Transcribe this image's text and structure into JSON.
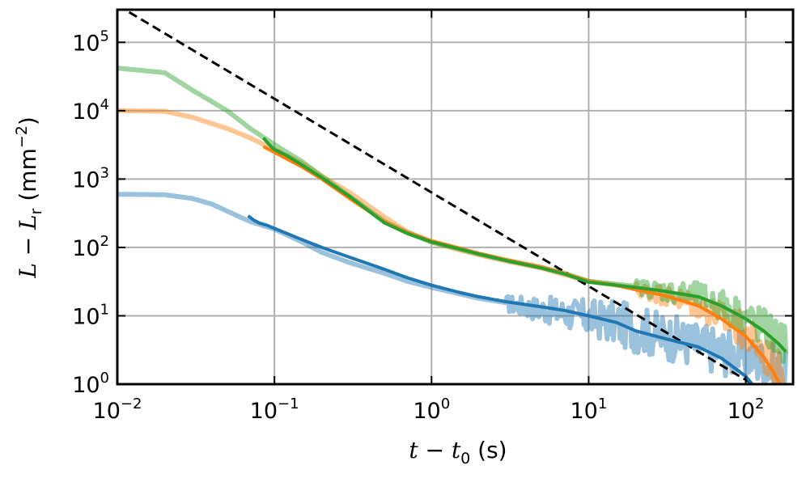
{
  "chart_data": {
    "type": "line",
    "title": "",
    "xscale": "log",
    "yscale": "log",
    "xlim": [
      0.01,
      200
    ],
    "ylim": [
      1,
      300000
    ],
    "grid": true,
    "xlabel": {
      "t": "t",
      "minus": " − ",
      "t0": "t",
      "sub": "0",
      "unit": " (s)"
    },
    "ylabel": {
      "L": "L",
      "minus": " − ",
      "Lr": "L",
      "sub": "r",
      "unit_open": " (mm",
      "sup": "−2",
      "unit_close": ")"
    },
    "xticks": [
      {
        "value": 0.01,
        "base": "10",
        "exp": "−2"
      },
      {
        "value": 0.1,
        "base": "10",
        "exp": "−1"
      },
      {
        "value": 1,
        "base": "10",
        "exp": "0"
      },
      {
        "value": 10,
        "base": "10",
        "exp": "1"
      },
      {
        "value": 100,
        "base": "10",
        "exp": "2"
      }
    ],
    "yticks": [
      {
        "value": 1,
        "base": "10",
        "exp": "0"
      },
      {
        "value": 10,
        "base": "10",
        "exp": "1"
      },
      {
        "value": 100,
        "base": "10",
        "exp": "2"
      },
      {
        "value": 1000,
        "base": "10",
        "exp": "3"
      },
      {
        "value": 10000,
        "base": "10",
        "exp": "4"
      },
      {
        "value": 100000,
        "base": "10",
        "exp": "5"
      }
    ],
    "reference_line": {
      "style": "dashed",
      "color": "#000000",
      "x": [
        0.01,
        120
      ],
      "y": [
        350000,
        0.9
      ]
    },
    "series": [
      {
        "color": "#1f77b4",
        "raw_smooth": [
          [
            0.01,
            600
          ],
          [
            0.02,
            590
          ],
          [
            0.03,
            520
          ],
          [
            0.04,
            430
          ],
          [
            0.05,
            340
          ],
          [
            0.06,
            280
          ],
          [
            0.07,
            240
          ],
          [
            0.1,
            185
          ],
          [
            0.15,
            120
          ],
          [
            0.2,
            85
          ],
          [
            0.3,
            60
          ],
          [
            0.5,
            42
          ],
          [
            0.7,
            32
          ],
          [
            1,
            26
          ],
          [
            1.5,
            21
          ],
          [
            2,
            18
          ],
          [
            3,
            15.5
          ],
          [
            5,
            13
          ],
          [
            7,
            11.5
          ],
          [
            10,
            10
          ],
          [
            15,
            8.5
          ],
          [
            20,
            7
          ],
          [
            30,
            5.5
          ],
          [
            50,
            4
          ],
          [
            70,
            3.3
          ],
          [
            100,
            2.8
          ],
          [
            130,
            2.2
          ],
          [
            160,
            1.8
          ],
          [
            180,
            1.5
          ]
        ],
        "raw_noise": {
          "from_x": 3,
          "amplitude": 0.35
        },
        "fit": [
          [
            0.068,
            290
          ],
          [
            0.074,
            250
          ],
          [
            0.08,
            228
          ],
          [
            0.09,
            210
          ],
          [
            0.1,
            190
          ],
          [
            0.12,
            160
          ],
          [
            0.15,
            130
          ],
          [
            0.2,
            100
          ],
          [
            0.3,
            72
          ],
          [
            0.5,
            48
          ],
          [
            0.7,
            36
          ],
          [
            1,
            28
          ],
          [
            1.5,
            22
          ],
          [
            2,
            19
          ],
          [
            3,
            16
          ],
          [
            5,
            13.5
          ],
          [
            7,
            12
          ],
          [
            10,
            10
          ],
          [
            15,
            8
          ],
          [
            20,
            6
          ],
          [
            30,
            4.7
          ],
          [
            50,
            3.5
          ],
          [
            70,
            2.4
          ],
          [
            100,
            1.3
          ],
          [
            110,
            1
          ]
        ]
      },
      {
        "color": "#ff7f0e",
        "raw_smooth": [
          [
            0.01,
            10000
          ],
          [
            0.02,
            9800
          ],
          [
            0.03,
            8000
          ],
          [
            0.05,
            5500
          ],
          [
            0.07,
            4000
          ],
          [
            0.1,
            2700
          ],
          [
            0.15,
            1700
          ],
          [
            0.2,
            1100
          ],
          [
            0.3,
            640
          ],
          [
            0.5,
            280
          ],
          [
            0.7,
            170
          ],
          [
            1,
            120
          ],
          [
            1.5,
            92
          ],
          [
            2,
            78
          ],
          [
            3,
            63
          ],
          [
            5,
            50
          ],
          [
            7,
            40
          ],
          [
            10,
            32
          ],
          [
            15,
            28
          ],
          [
            20,
            25
          ],
          [
            30,
            21
          ],
          [
            50,
            15
          ],
          [
            70,
            10
          ],
          [
            100,
            6
          ],
          [
            130,
            3
          ],
          [
            160,
            1.8
          ],
          [
            180,
            1.2
          ]
        ],
        "raw_noise": {
          "from_x": 20,
          "amplitude": 0.3
        },
        "fit": [
          [
            0.085,
            3000
          ],
          [
            0.1,
            2450
          ],
          [
            0.15,
            1500
          ],
          [
            0.2,
            1000
          ],
          [
            0.3,
            520
          ],
          [
            0.5,
            240
          ],
          [
            0.7,
            165
          ],
          [
            1,
            125
          ],
          [
            1.5,
            98
          ],
          [
            2,
            82
          ],
          [
            3,
            66
          ],
          [
            5,
            52
          ],
          [
            7,
            42
          ],
          [
            10,
            32
          ],
          [
            15,
            28
          ],
          [
            20,
            24
          ],
          [
            30,
            20
          ],
          [
            50,
            14
          ],
          [
            70,
            9
          ],
          [
            100,
            5
          ],
          [
            130,
            2.5
          ],
          [
            150,
            1.5
          ],
          [
            165,
            1
          ]
        ]
      },
      {
        "color": "#2ca02c",
        "raw_smooth": [
          [
            0.01,
            42000
          ],
          [
            0.02,
            36000
          ],
          [
            0.03,
            20000
          ],
          [
            0.05,
            10000
          ],
          [
            0.07,
            5500
          ],
          [
            0.1,
            3200
          ],
          [
            0.15,
            1800
          ],
          [
            0.2,
            1100
          ],
          [
            0.3,
            560
          ],
          [
            0.5,
            240
          ],
          [
            0.7,
            165
          ],
          [
            1,
            120
          ],
          [
            1.5,
            95
          ],
          [
            2,
            80
          ],
          [
            3,
            65
          ],
          [
            5,
            51
          ],
          [
            7,
            42
          ],
          [
            10,
            32
          ],
          [
            15,
            29
          ],
          [
            20,
            27
          ],
          [
            30,
            24
          ],
          [
            50,
            20
          ],
          [
            70,
            15
          ],
          [
            100,
            10
          ],
          [
            130,
            7
          ],
          [
            160,
            5
          ],
          [
            180,
            4.2
          ]
        ],
        "raw_noise": {
          "from_x": 20,
          "amplitude": 0.3
        },
        "fit": [
          [
            0.085,
            4000
          ],
          [
            0.095,
            3000
          ],
          [
            0.1,
            2700
          ],
          [
            0.12,
            2200
          ],
          [
            0.15,
            1600
          ],
          [
            0.2,
            1050
          ],
          [
            0.3,
            560
          ],
          [
            0.5,
            230
          ],
          [
            0.7,
            160
          ],
          [
            1,
            120
          ],
          [
            1.5,
            95
          ],
          [
            2,
            80
          ],
          [
            3,
            64
          ],
          [
            5,
            50
          ],
          [
            7,
            41
          ],
          [
            10,
            31
          ],
          [
            15,
            28
          ],
          [
            20,
            26
          ],
          [
            30,
            23
          ],
          [
            50,
            19
          ],
          [
            70,
            14
          ],
          [
            100,
            9
          ],
          [
            130,
            6
          ],
          [
            160,
            4
          ],
          [
            180,
            3
          ]
        ]
      }
    ]
  }
}
